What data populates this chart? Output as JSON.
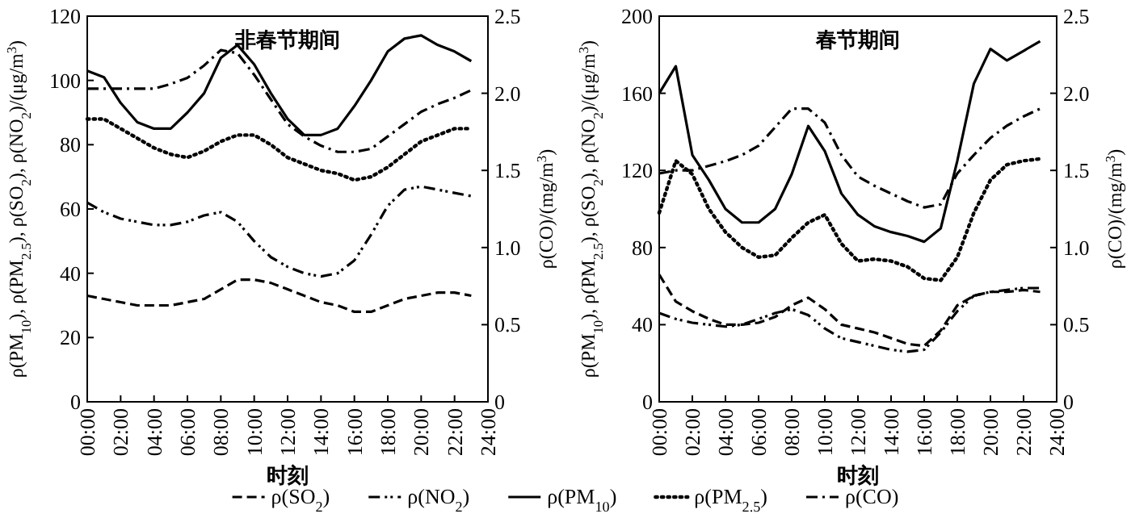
{
  "chart_data": [
    {
      "type": "line",
      "title": "非春节期间",
      "xlabel": "时刻",
      "ylabel": "ρ(PM$_{10}$), ρ(PM$_{2.5}$), ρ(SO$_{2}$), ρ(NO$_{2}$)/(μg/m$^{3}$)",
      "y2label": "ρ(CO)/(mg/m$^{3}$)",
      "x": [
        0,
        1,
        2,
        3,
        4,
        5,
        6,
        7,
        8,
        9,
        10,
        11,
        12,
        13,
        14,
        15,
        16,
        17,
        18,
        19,
        20,
        21,
        22,
        23
      ],
      "xlim": [
        0,
        24
      ],
      "xticks": [
        {
          "value": 0,
          "label": "00:00"
        },
        {
          "value": 2,
          "label": "02:00"
        },
        {
          "value": 4,
          "label": "04:00"
        },
        {
          "value": 6,
          "label": "06:00"
        },
        {
          "value": 8,
          "label": "08:00"
        },
        {
          "value": 10,
          "label": "10:00"
        },
        {
          "value": 12,
          "label": "12:00"
        },
        {
          "value": 14,
          "label": "14:00"
        },
        {
          "value": 16,
          "label": "16:00"
        },
        {
          "value": 18,
          "label": "18:00"
        },
        {
          "value": 20,
          "label": "20:00"
        },
        {
          "value": 22,
          "label": "22:00"
        },
        {
          "value": 24,
          "label": "24:00"
        }
      ],
      "ylim": [
        0,
        120
      ],
      "yticks": [
        0,
        20,
        40,
        60,
        80,
        100,
        120
      ],
      "y2lim": [
        0,
        2.5
      ],
      "y2ticks": [
        {
          "value": 0,
          "label": "0"
        },
        {
          "value": 0.5,
          "label": "0.5"
        },
        {
          "value": 1,
          "label": "1.0"
        },
        {
          "value": 1.5,
          "label": "1.5"
        },
        {
          "value": 2,
          "label": "2.0"
        },
        {
          "value": 2.5,
          "label": "2.5"
        }
      ],
      "grid": false,
      "legend": "bottom",
      "marker": "none",
      "series": [
        {
          "name": "ρ(SO$_{2}$)",
          "color": "#000000",
          "line_style": "dashed",
          "values": [
            33,
            32,
            31,
            30,
            30,
            30,
            31,
            32,
            35,
            38,
            38,
            37,
            35,
            33,
            31,
            30,
            28,
            28,
            30,
            32,
            33,
            34,
            34,
            33
          ]
        },
        {
          "name": "ρ(NO$_{2}$)",
          "color": "#000000",
          "line_style": "dashdotdot",
          "values": [
            62,
            59,
            57,
            56,
            55,
            55,
            56,
            58,
            59,
            56,
            50,
            45,
            42,
            40,
            39,
            40,
            44,
            52,
            61,
            66,
            67,
            66,
            65,
            64
          ]
        },
        {
          "name": "ρ(PM$_{10}$)",
          "color": "#000000",
          "line_style": "solid",
          "values": [
            103,
            101,
            93,
            87,
            85,
            85,
            90,
            96,
            107,
            111,
            105,
            96,
            88,
            83,
            83,
            85,
            92,
            100,
            109,
            113,
            114,
            111,
            109,
            106
          ]
        },
        {
          "name": "ρ(PM$_{2.5}$)",
          "color": "#000000",
          "line_style": "dotted",
          "values": [
            88,
            88,
            85,
            82,
            79,
            77,
            76,
            78,
            81,
            83,
            83,
            80,
            76,
            74,
            72,
            71,
            69,
            70,
            73,
            77,
            81,
            83,
            85,
            85
          ]
        },
        {
          "name": "ρ(CO)",
          "color": "#000000",
          "line_style": "dashdot",
          "axis": "y2",
          "values": [
            2.03,
            2.03,
            2.03,
            2.03,
            2.03,
            2.06,
            2.1,
            2.18,
            2.28,
            2.26,
            2.12,
            1.96,
            1.8,
            1.72,
            1.66,
            1.62,
            1.62,
            1.64,
            1.72,
            1.8,
            1.88,
            1.93,
            1.97,
            2.02
          ]
        }
      ]
    },
    {
      "type": "line",
      "title": "春节期间",
      "xlabel": "时刻",
      "ylabel": "ρ(PM$_{10}$), ρ(PM$_{2.5}$), ρ(SO$_{2}$), ρ(NO$_{2}$)/(μg/m$^{3}$)",
      "y2label": "ρ(CO)/(mg/m$^{3}$)",
      "x": [
        0,
        1,
        2,
        3,
        4,
        5,
        6,
        7,
        8,
        9,
        10,
        11,
        12,
        13,
        14,
        15,
        16,
        17,
        18,
        19,
        20,
        21,
        22,
        23
      ],
      "xlim": [
        0,
        24
      ],
      "xticks": [
        {
          "value": 0,
          "label": "00:00"
        },
        {
          "value": 2,
          "label": "02:00"
        },
        {
          "value": 4,
          "label": "04:00"
        },
        {
          "value": 6,
          "label": "06:00"
        },
        {
          "value": 8,
          "label": "08:00"
        },
        {
          "value": 10,
          "label": "10:00"
        },
        {
          "value": 12,
          "label": "12:00"
        },
        {
          "value": 14,
          "label": "14:00"
        },
        {
          "value": 16,
          "label": "16:00"
        },
        {
          "value": 18,
          "label": "18:00"
        },
        {
          "value": 20,
          "label": "20:00"
        },
        {
          "value": 22,
          "label": "22:00"
        },
        {
          "value": 24,
          "label": "24:00"
        }
      ],
      "ylim": [
        0,
        200
      ],
      "yticks": [
        0,
        40,
        80,
        120,
        160,
        200
      ],
      "y2lim": [
        0,
        2.5
      ],
      "y2ticks": [
        {
          "value": 0,
          "label": "0"
        },
        {
          "value": 0.5,
          "label": "0.5"
        },
        {
          "value": 1,
          "label": "1.0"
        },
        {
          "value": 1.5,
          "label": "1.5"
        },
        {
          "value": 2,
          "label": "2.0"
        },
        {
          "value": 2.5,
          "label": "2.5"
        }
      ],
      "grid": false,
      "legend": "bottom",
      "marker": "none",
      "series": [
        {
          "name": "ρ(SO$_{2}$)",
          "color": "#000000",
          "line_style": "dashed",
          "values": [
            66,
            52,
            47,
            43,
            40,
            40,
            41,
            44,
            50,
            54,
            48,
            40,
            38,
            36,
            33,
            30,
            29,
            37,
            50,
            55,
            57,
            57,
            58,
            57
          ]
        },
        {
          "name": "ρ(NO$_{2}$)",
          "color": "#000000",
          "line_style": "dashdotdot",
          "values": [
            46,
            43,
            41,
            40,
            39,
            40,
            43,
            46,
            48,
            45,
            38,
            33,
            31,
            29,
            27,
            26,
            27,
            36,
            47,
            55,
            57,
            58,
            59,
            59
          ]
        },
        {
          "name": "ρ(PM$_{10}$)",
          "color": "#000000",
          "line_style": "solid",
          "values": [
            160,
            174,
            128,
            115,
            100,
            93,
            93,
            100,
            118,
            143,
            130,
            108,
            97,
            91,
            88,
            86,
            83,
            90,
            125,
            165,
            183,
            177,
            182,
            187
          ]
        },
        {
          "name": "ρ(PM$_{2.5}$)",
          "color": "#000000",
          "line_style": "dotted",
          "values": [
            98,
            125,
            118,
            100,
            88,
            80,
            75,
            76,
            85,
            93,
            97,
            82,
            73,
            74,
            73,
            70,
            64,
            63,
            75,
            98,
            115,
            123,
            125,
            126
          ]
        },
        {
          "name": "ρ(CO)",
          "color": "#000000",
          "line_style": "dashdot",
          "axis": "y2",
          "values": [
            1.48,
            1.5,
            1.5,
            1.53,
            1.56,
            1.6,
            1.66,
            1.78,
            1.9,
            1.9,
            1.81,
            1.6,
            1.46,
            1.4,
            1.35,
            1.3,
            1.26,
            1.28,
            1.48,
            1.6,
            1.71,
            1.79,
            1.85,
            1.9
          ]
        }
      ]
    }
  ]
}
